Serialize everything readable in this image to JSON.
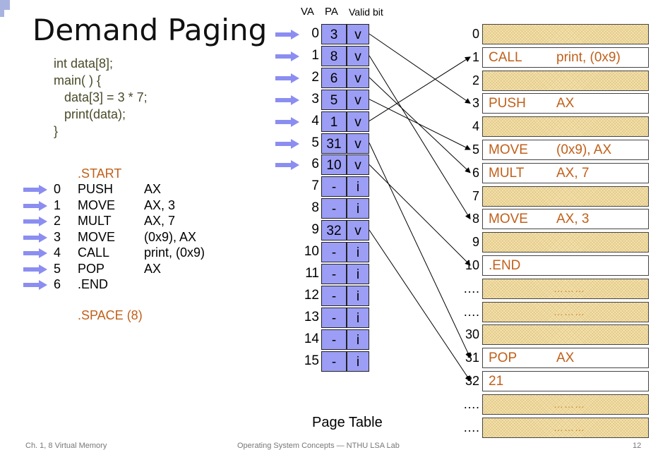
{
  "title": "Demand Paging",
  "code_lines": [
    "int data[8];",
    "main( ) {",
    "   data[3] = 3 * 7;",
    "   print(data);",
    "}"
  ],
  "asm": {
    "start": ".START",
    "lines": [
      {
        "addr": "0",
        "op": "PUSH",
        "arg": "AX",
        "arrow": true
      },
      {
        "addr": "1",
        "op": "MOVE",
        "arg": "AX, 3",
        "arrow": true
      },
      {
        "addr": "2",
        "op": "MULT",
        "arg": "AX, 7",
        "arrow": true
      },
      {
        "addr": "3",
        "op": "MOVE",
        "arg": "(0x9), AX",
        "arrow": true
      },
      {
        "addr": "4",
        "op": "CALL",
        "arg": "print, (0x9)",
        "arrow": true
      },
      {
        "addr": "5",
        "op": "POP",
        "arg": "AX",
        "arrow": true
      },
      {
        "addr": "6",
        "op": ".END",
        "arg": "",
        "arrow": true
      }
    ],
    "space": ".SPACE (8)"
  },
  "page_table": {
    "headers": {
      "va": "VA",
      "pa": "PA",
      "valid": "Valid bit"
    },
    "label": "Page Table",
    "rows": [
      {
        "va": "0",
        "pa": "3",
        "valid": "v",
        "arrow": true
      },
      {
        "va": "1",
        "pa": "8",
        "valid": "v",
        "arrow": true
      },
      {
        "va": "2",
        "pa": "6",
        "valid": "v",
        "arrow": true
      },
      {
        "va": "3",
        "pa": "5",
        "valid": "v",
        "arrow": true
      },
      {
        "va": "4",
        "pa": "1",
        "valid": "v",
        "arrow": true
      },
      {
        "va": "5",
        "pa": "31",
        "valid": "v",
        "arrow": true
      },
      {
        "va": "6",
        "pa": "10",
        "valid": "v",
        "arrow": true
      },
      {
        "va": "7",
        "pa": "-",
        "valid": "i",
        "arrow": false
      },
      {
        "va": "8",
        "pa": "-",
        "valid": "i",
        "arrow": false
      },
      {
        "va": "9",
        "pa": "32",
        "valid": "v",
        "arrow": false
      },
      {
        "va": "10",
        "pa": "-",
        "valid": "i",
        "arrow": false
      },
      {
        "va": "11",
        "pa": "-",
        "valid": "i",
        "arrow": false
      },
      {
        "va": "12",
        "pa": "-",
        "valid": "i",
        "arrow": false
      },
      {
        "va": "13",
        "pa": "-",
        "valid": "i",
        "arrow": false
      },
      {
        "va": "14",
        "pa": "-",
        "valid": "i",
        "arrow": false
      },
      {
        "va": "15",
        "pa": "-",
        "valid": "i",
        "arrow": false
      }
    ]
  },
  "memory": [
    {
      "num": "0",
      "filled": true,
      "t1": "",
      "t2": ""
    },
    {
      "num": "1",
      "filled": false,
      "t1": "CALL",
      "t2": "print, (0x9)"
    },
    {
      "num": "2",
      "filled": true,
      "t1": "",
      "t2": ""
    },
    {
      "num": "3",
      "filled": false,
      "t1": "PUSH",
      "t2": "AX"
    },
    {
      "num": "4",
      "filled": true,
      "t1": "",
      "t2": ""
    },
    {
      "num": "5",
      "filled": false,
      "t1": "MOVE",
      "t2": "(0x9), AX"
    },
    {
      "num": "6",
      "filled": false,
      "t1": "MULT",
      "t2": "AX, 7"
    },
    {
      "num": "7",
      "filled": true,
      "t1": "",
      "t2": ""
    },
    {
      "num": "8",
      "filled": false,
      "t1": "MOVE",
      "t2": "AX, 3"
    },
    {
      "num": "9",
      "filled": true,
      "t1": "",
      "t2": ""
    },
    {
      "num": "10",
      "filled": false,
      "t1": ".END",
      "t2": ""
    },
    {
      "num": "….",
      "filled": true,
      "t1": "",
      "t2": "",
      "dots": "………"
    },
    {
      "num": "….",
      "filled": true,
      "t1": "",
      "t2": "",
      "dots": "………"
    },
    {
      "num": "30",
      "filled": true,
      "t1": "",
      "t2": ""
    },
    {
      "num": "31",
      "filled": false,
      "t1": "POP",
      "t2": "AX"
    },
    {
      "num": "32",
      "filled": false,
      "t1": "21",
      "t2": ""
    },
    {
      "num": "….",
      "filled": true,
      "t1": "",
      "t2": "",
      "dots": "………"
    },
    {
      "num": "….",
      "filled": true,
      "t1": "",
      "t2": "",
      "dots": "………"
    }
  ],
  "footer": {
    "left": "Ch. 1, 8 Virtual Memory",
    "center": "Operating System Concepts — NTHU LSA Lab",
    "page": "12"
  },
  "colors": {
    "arrow": "#8b8ef0",
    "table": "#9c9ef5",
    "asm_text": "#c0601a",
    "memory_fill": "#f6e3b0"
  }
}
